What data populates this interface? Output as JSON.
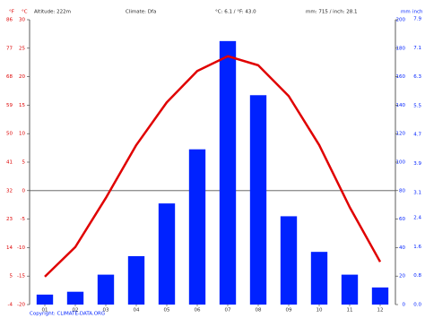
{
  "chart_data": {
    "type": "bar",
    "header": {
      "altitude": "Altitude: 222m",
      "climate": "Climate: Dfa",
      "temperature": "°C: 6.1 / °F: 43.0",
      "precipitation": "mm: 715 / inch: 28.1"
    },
    "axis_units": {
      "fahrenheit": "°F",
      "celsius": "°C",
      "mm": "mm",
      "inch": "inch"
    },
    "copyright": "Copyright: CLIMATE-DATA.ORG",
    "categories": [
      "01",
      "02",
      "03",
      "04",
      "05",
      "06",
      "07",
      "08",
      "09",
      "10",
      "11",
      "12"
    ],
    "series": [
      {
        "type": "bar",
        "axis": "y2",
        "color": "#0022ff",
        "values": [
          7,
          9,
          21,
          34,
          71,
          109,
          185,
          147,
          62,
          37,
          21,
          12
        ]
      },
      {
        "type": "line",
        "color": "#e00000",
        "values": [
          -15.1,
          -9.9,
          -1.3,
          8.0,
          15.5,
          21.0,
          23.6,
          22.0,
          16.6,
          8.0,
          -2.9,
          -12.5
        ]
      }
    ],
    "ylim": [
      -20,
      30
    ],
    "yticks": [
      30,
      25,
      20,
      15,
      10,
      5,
      0,
      -5,
      -10,
      -15,
      -20
    ],
    "fahrenheit_ticks": [
      86,
      77,
      68,
      59,
      50,
      41,
      32,
      23,
      14,
      5,
      -4
    ],
    "y2lim": [
      0,
      200
    ],
    "y2ticks": [
      200,
      180,
      160,
      140,
      120,
      100,
      80,
      60,
      40,
      20,
      0
    ],
    "inch_ticks": [
      {
        "value": 7.9,
        "label": "7.9"
      },
      {
        "value": 7.1,
        "label": "7.1"
      },
      {
        "value": 6.3,
        "label": "6.3"
      },
      {
        "value": 5.5,
        "label": "5.5"
      },
      {
        "value": 4.7,
        "label": "4.7"
      },
      {
        "value": 3.9,
        "label": "3.9"
      },
      {
        "value": 3.1,
        "label": "3.1"
      },
      {
        "value": 2.4,
        "label": "2.4"
      },
      {
        "value": 1.6,
        "label": "1.6"
      },
      {
        "value": 0.8,
        "label": "0.8"
      },
      {
        "value": 0,
        "label": "0.0"
      }
    ]
  }
}
